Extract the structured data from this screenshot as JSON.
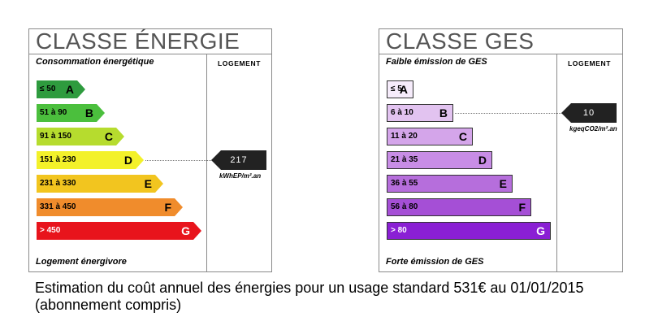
{
  "energy": {
    "title": "CLASSE ÉNERGIE",
    "top_label": "Consommation énergétique",
    "bottom_label": "Logement énergivore",
    "logement_label": "LOGEMENT",
    "classes": [
      {
        "range": "≤ 50",
        "letter": "A",
        "color": "#2e9b3e"
      },
      {
        "range": "51 à 90",
        "letter": "B",
        "color": "#4bbf3d"
      },
      {
        "range": "91 à 150",
        "letter": "C",
        "color": "#b6dc2e"
      },
      {
        "range": "151 à 230",
        "letter": "D",
        "color": "#f3f12a"
      },
      {
        "range": "231 à 330",
        "letter": "E",
        "color": "#f2c51f"
      },
      {
        "range": "331 à 450",
        "letter": "F",
        "color": "#f08c2c"
      },
      {
        "range": "> 450",
        "letter": "G",
        "color": "#e8141c"
      }
    ],
    "value": "217",
    "value_class": "D",
    "unit": "kWhEP/m².an"
  },
  "ges": {
    "title": "CLASSE GES",
    "top_label": "Faible émission de GES",
    "bottom_label": "Forte émission de GES",
    "logement_label": "LOGEMENT",
    "classes": [
      {
        "range": "≤ 5",
        "letter": "A",
        "color": "#f6ecfb"
      },
      {
        "range": "6 à 10",
        "letter": "B",
        "color": "#e2c3f0"
      },
      {
        "range": "11 à 20",
        "letter": "C",
        "color": "#d4a5ea"
      },
      {
        "range": "21 à 35",
        "letter": "D",
        "color": "#c88de6"
      },
      {
        "range": "36 à 55",
        "letter": "E",
        "color": "#b66edc"
      },
      {
        "range": "56 à 80",
        "letter": "F",
        "color": "#a54fd6"
      },
      {
        "range": "> 80",
        "letter": "G",
        "color": "#8a1fd4"
      }
    ],
    "value": "10",
    "value_class": "B",
    "unit": "kgeqCO2/m².an"
  },
  "footer": "Estimation du coût annuel des énergies pour un usage standard 531€ au 01/01/2015 (abonnement compris)"
}
